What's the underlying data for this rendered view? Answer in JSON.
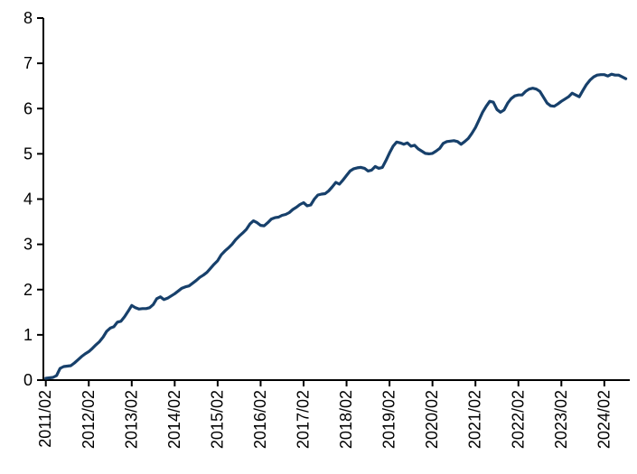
{
  "page": {
    "background_color": "#ffffff"
  },
  "chart_data": {
    "type": "line",
    "x_start": "2011/02",
    "frequency": "monthly",
    "x_end": "2024/08",
    "x_tick_labels": [
      "2011/02",
      "2012/02",
      "2013/02",
      "2014/02",
      "2015/02",
      "2016/02",
      "2017/02",
      "2018/02",
      "2019/02",
      "2020/02",
      "2021/02",
      "2022/02",
      "2023/02",
      "2024/02"
    ],
    "y_ticks": [
      0,
      1,
      2,
      3,
      4,
      5,
      6,
      7,
      8
    ],
    "ylim": [
      0,
      8
    ],
    "grid": "off",
    "legend": "none",
    "line_color": "#17406b",
    "axis_color": "#000000",
    "series": [
      {
        "name": "value",
        "values": [
          0.04,
          0.05,
          0.06,
          0.1,
          0.26,
          0.3,
          0.31,
          0.32,
          0.38,
          0.45,
          0.52,
          0.58,
          0.63,
          0.7,
          0.78,
          0.85,
          0.95,
          1.08,
          1.15,
          1.18,
          1.28,
          1.3,
          1.4,
          1.52,
          1.65,
          1.6,
          1.57,
          1.58,
          1.58,
          1.6,
          1.67,
          1.8,
          1.84,
          1.78,
          1.81,
          1.86,
          1.91,
          1.97,
          2.03,
          2.06,
          2.08,
          2.14,
          2.2,
          2.27,
          2.32,
          2.38,
          2.47,
          2.56,
          2.64,
          2.77,
          2.85,
          2.92,
          3.0,
          3.1,
          3.18,
          3.25,
          3.33,
          3.45,
          3.52,
          3.48,
          3.42,
          3.41,
          3.48,
          3.56,
          3.59,
          3.6,
          3.64,
          3.66,
          3.7,
          3.77,
          3.82,
          3.88,
          3.92,
          3.85,
          3.87,
          4.0,
          4.09,
          4.11,
          4.12,
          4.18,
          4.27,
          4.37,
          4.33,
          4.42,
          4.52,
          4.62,
          4.67,
          4.69,
          4.7,
          4.68,
          4.62,
          4.64,
          4.72,
          4.68,
          4.7,
          4.85,
          5.02,
          5.17,
          5.26,
          5.24,
          5.21,
          5.24,
          5.17,
          5.19,
          5.11,
          5.06,
          5.01,
          5.0,
          5.01,
          5.06,
          5.12,
          5.23,
          5.27,
          5.28,
          5.29,
          5.27,
          5.21,
          5.27,
          5.34,
          5.45,
          5.58,
          5.75,
          5.92,
          6.05,
          6.16,
          6.14,
          5.98,
          5.92,
          5.97,
          6.12,
          6.22,
          6.28,
          6.3,
          6.3,
          6.38,
          6.43,
          6.45,
          6.43,
          6.38,
          6.25,
          6.12,
          6.06,
          6.05,
          6.1,
          6.16,
          6.21,
          6.26,
          6.34,
          6.3,
          6.26,
          6.4,
          6.53,
          6.63,
          6.7,
          6.74,
          6.75,
          6.75,
          6.72,
          6.76,
          6.74,
          6.74,
          6.7,
          6.66
        ]
      }
    ]
  }
}
